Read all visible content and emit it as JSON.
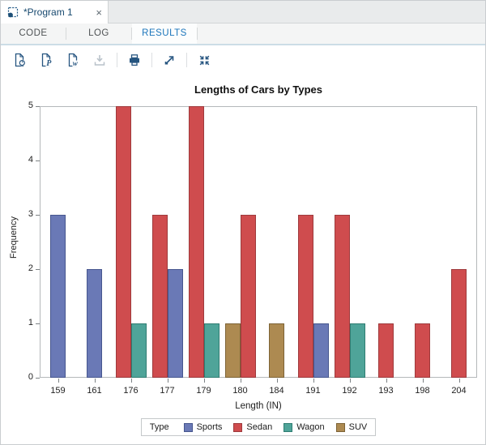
{
  "window": {
    "tab_title": "*Program 1",
    "close_glyph": "×"
  },
  "tabs": {
    "code": "CODE",
    "log": "LOG",
    "results": "RESULTS",
    "active": "RESULTS"
  },
  "toolbar": {
    "pdf_badge": "P",
    "word_badge": "w",
    "icons": [
      {
        "name": "download-html-results-icon",
        "enabled": true
      },
      {
        "name": "download-pdf-results-icon",
        "enabled": true
      },
      {
        "name": "download-word-results-icon",
        "enabled": true
      },
      {
        "name": "download-file-icon",
        "enabled": false
      },
      {
        "name": "print-icon",
        "enabled": true
      },
      {
        "name": "open-in-new-window-icon",
        "enabled": true
      },
      {
        "name": "collapse-icon",
        "enabled": true
      }
    ]
  },
  "chart_data": {
    "type": "bar",
    "title": "Lengths of Cars by Types",
    "xlabel": "Length (IN)",
    "ylabel": "Frequency",
    "legend_title": "Type",
    "legend_position": "bottom",
    "grid": false,
    "ylim": [
      0,
      5
    ],
    "yticks": [
      0,
      1,
      2,
      3,
      4,
      5
    ],
    "categories": [
      "159",
      "161",
      "176",
      "177",
      "179",
      "180",
      "184",
      "191",
      "192",
      "193",
      "198",
      "204"
    ],
    "series": [
      {
        "name": "Sports",
        "color": "#6A79B6",
        "border": "#46568E",
        "values": [
          3,
          2,
          0,
          2,
          0,
          0,
          0,
          1,
          0,
          0,
          0,
          0
        ]
      },
      {
        "name": "Sedan",
        "color": "#CF4C4E",
        "border": "#9E3A3C",
        "values": [
          0,
          0,
          5,
          3,
          5,
          3,
          0,
          3,
          3,
          1,
          1,
          2
        ]
      },
      {
        "name": "Wagon",
        "color": "#4FA499",
        "border": "#2F7D72",
        "values": [
          0,
          0,
          1,
          0,
          1,
          0,
          0,
          0,
          1,
          0,
          0,
          0
        ]
      },
      {
        "name": "SUV",
        "color": "#AD8A51",
        "border": "#7D6336",
        "values": [
          0,
          0,
          0,
          0,
          0,
          1,
          1,
          0,
          0,
          0,
          0,
          0
        ]
      }
    ],
    "groups": [
      {
        "category": "159",
        "bars": [
          {
            "type": "Sports",
            "value": 3
          }
        ]
      },
      {
        "category": "161",
        "bars": [
          {
            "type": "Sports",
            "value": 2
          }
        ]
      },
      {
        "category": "176",
        "bars": [
          {
            "type": "Sedan",
            "value": 5
          },
          {
            "type": "Wagon",
            "value": 1
          }
        ]
      },
      {
        "category": "177",
        "bars": [
          {
            "type": "Sedan",
            "value": 3
          },
          {
            "type": "Sports",
            "value": 2
          }
        ]
      },
      {
        "category": "179",
        "bars": [
          {
            "type": "Sedan",
            "value": 5
          },
          {
            "type": "Wagon",
            "value": 1
          }
        ]
      },
      {
        "category": "180",
        "bars": [
          {
            "type": "SUV",
            "value": 1
          },
          {
            "type": "Sedan",
            "value": 3
          }
        ]
      },
      {
        "category": "184",
        "bars": [
          {
            "type": "SUV",
            "value": 1
          }
        ]
      },
      {
        "category": "191",
        "bars": [
          {
            "type": "Sedan",
            "value": 3
          },
          {
            "type": "Sports",
            "value": 1
          }
        ]
      },
      {
        "category": "192",
        "bars": [
          {
            "type": "Sedan",
            "value": 3
          },
          {
            "type": "Wagon",
            "value": 1
          }
        ]
      },
      {
        "category": "193",
        "bars": [
          {
            "type": "Sedan",
            "value": 1
          }
        ]
      },
      {
        "category": "198",
        "bars": [
          {
            "type": "Sedan",
            "value": 1
          }
        ]
      },
      {
        "category": "204",
        "bars": [
          {
            "type": "Sedan",
            "value": 2
          }
        ]
      }
    ]
  }
}
